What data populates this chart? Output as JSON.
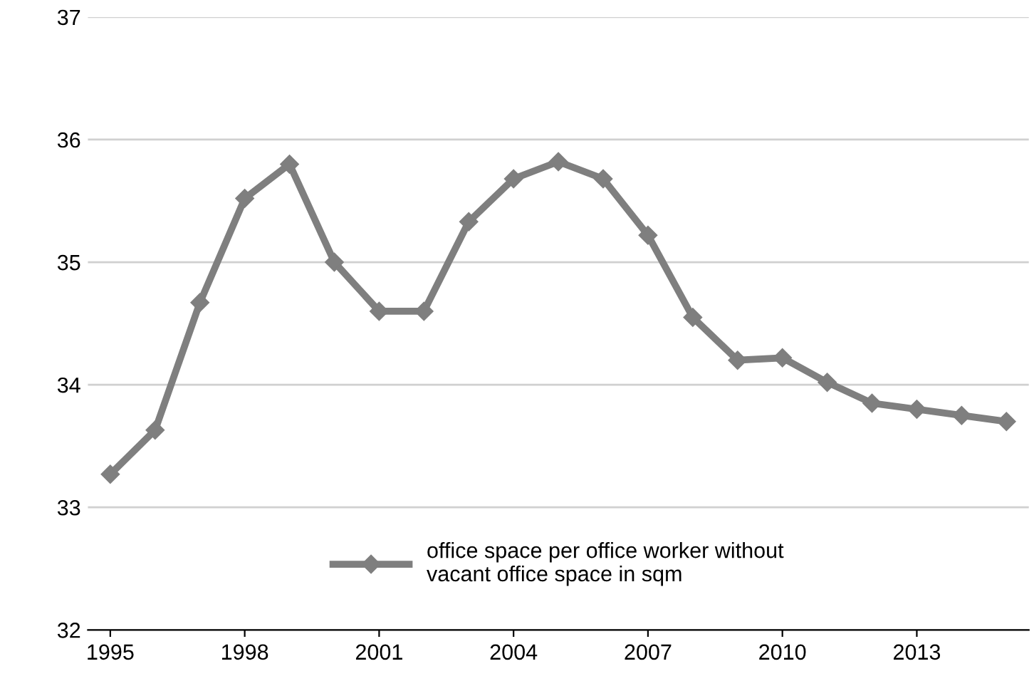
{
  "chart_data": {
    "type": "line",
    "x": [
      1995,
      1996,
      1997,
      1998,
      1999,
      2000,
      2001,
      2002,
      2003,
      2004,
      2005,
      2006,
      2007,
      2008,
      2009,
      2010,
      2011,
      2012,
      2013,
      2014,
      2015
    ],
    "series": [
      {
        "name": "office space per office worker without\nvacant office space in sqm",
        "color": "#7f7f7f",
        "values": [
          33.27,
          33.63,
          34.67,
          35.52,
          35.8,
          35.0,
          34.6,
          34.6,
          35.33,
          35.68,
          35.82,
          35.68,
          35.22,
          34.55,
          34.2,
          34.22,
          34.02,
          33.85,
          33.8,
          33.75,
          33.7
        ]
      }
    ],
    "xlim": [
      1994.5,
      2015.5
    ],
    "xticks": [
      1995,
      1998,
      2001,
      2004,
      2007,
      2010,
      2013
    ],
    "ylim": [
      32,
      37
    ],
    "yticks": [
      32,
      33,
      34,
      35,
      36,
      37
    ],
    "grid": "y",
    "legend": "bottom",
    "marker": "diamond",
    "line_style": "solid"
  }
}
